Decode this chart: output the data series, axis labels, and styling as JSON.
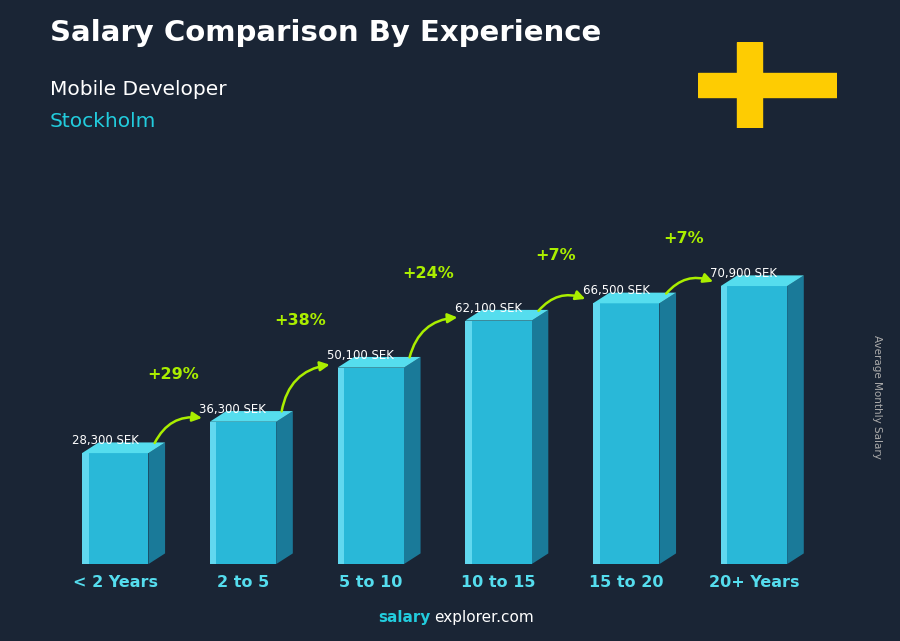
{
  "categories": [
    "< 2 Years",
    "2 to 5",
    "5 to 10",
    "10 to 15",
    "15 to 20",
    "20+ Years"
  ],
  "values": [
    28300,
    36300,
    50100,
    62100,
    66500,
    70900
  ],
  "salary_labels": [
    "28,300 SEK",
    "36,300 SEK",
    "50,100 SEK",
    "62,100 SEK",
    "66,500 SEK",
    "70,900 SEK"
  ],
  "pct_changes": [
    null,
    "+29%",
    "+38%",
    "+24%",
    "+7%",
    "+7%"
  ],
  "title_line1": "Salary Comparison By Experience",
  "subtitle1": "Mobile Developer",
  "subtitle2": "Stockholm",
  "ylabel": "Average Monthly Salary",
  "footer_bold": "salary",
  "footer_normal": "explorer.com",
  "bar_front_color": "#29b8d8",
  "bar_side_color": "#1a7a99",
  "bar_top_color": "#55ddee",
  "bar_highlight_color": "#88eeff",
  "pct_color": "#aaee00",
  "salary_label_color": "#ffffff",
  "title_color": "#ffffff",
  "subtitle1_color": "#ffffff",
  "subtitle2_color": "#22ccdd",
  "xtick_color": "#55ddee",
  "bg_color": "#1a2535",
  "ylim": [
    0,
    85000
  ],
  "flag_blue": "#006AA7",
  "flag_yellow": "#FECC02",
  "ylabel_color": "#aaaaaa",
  "footer_bold_color": "#22ccdd",
  "footer_normal_color": "#ffffff"
}
